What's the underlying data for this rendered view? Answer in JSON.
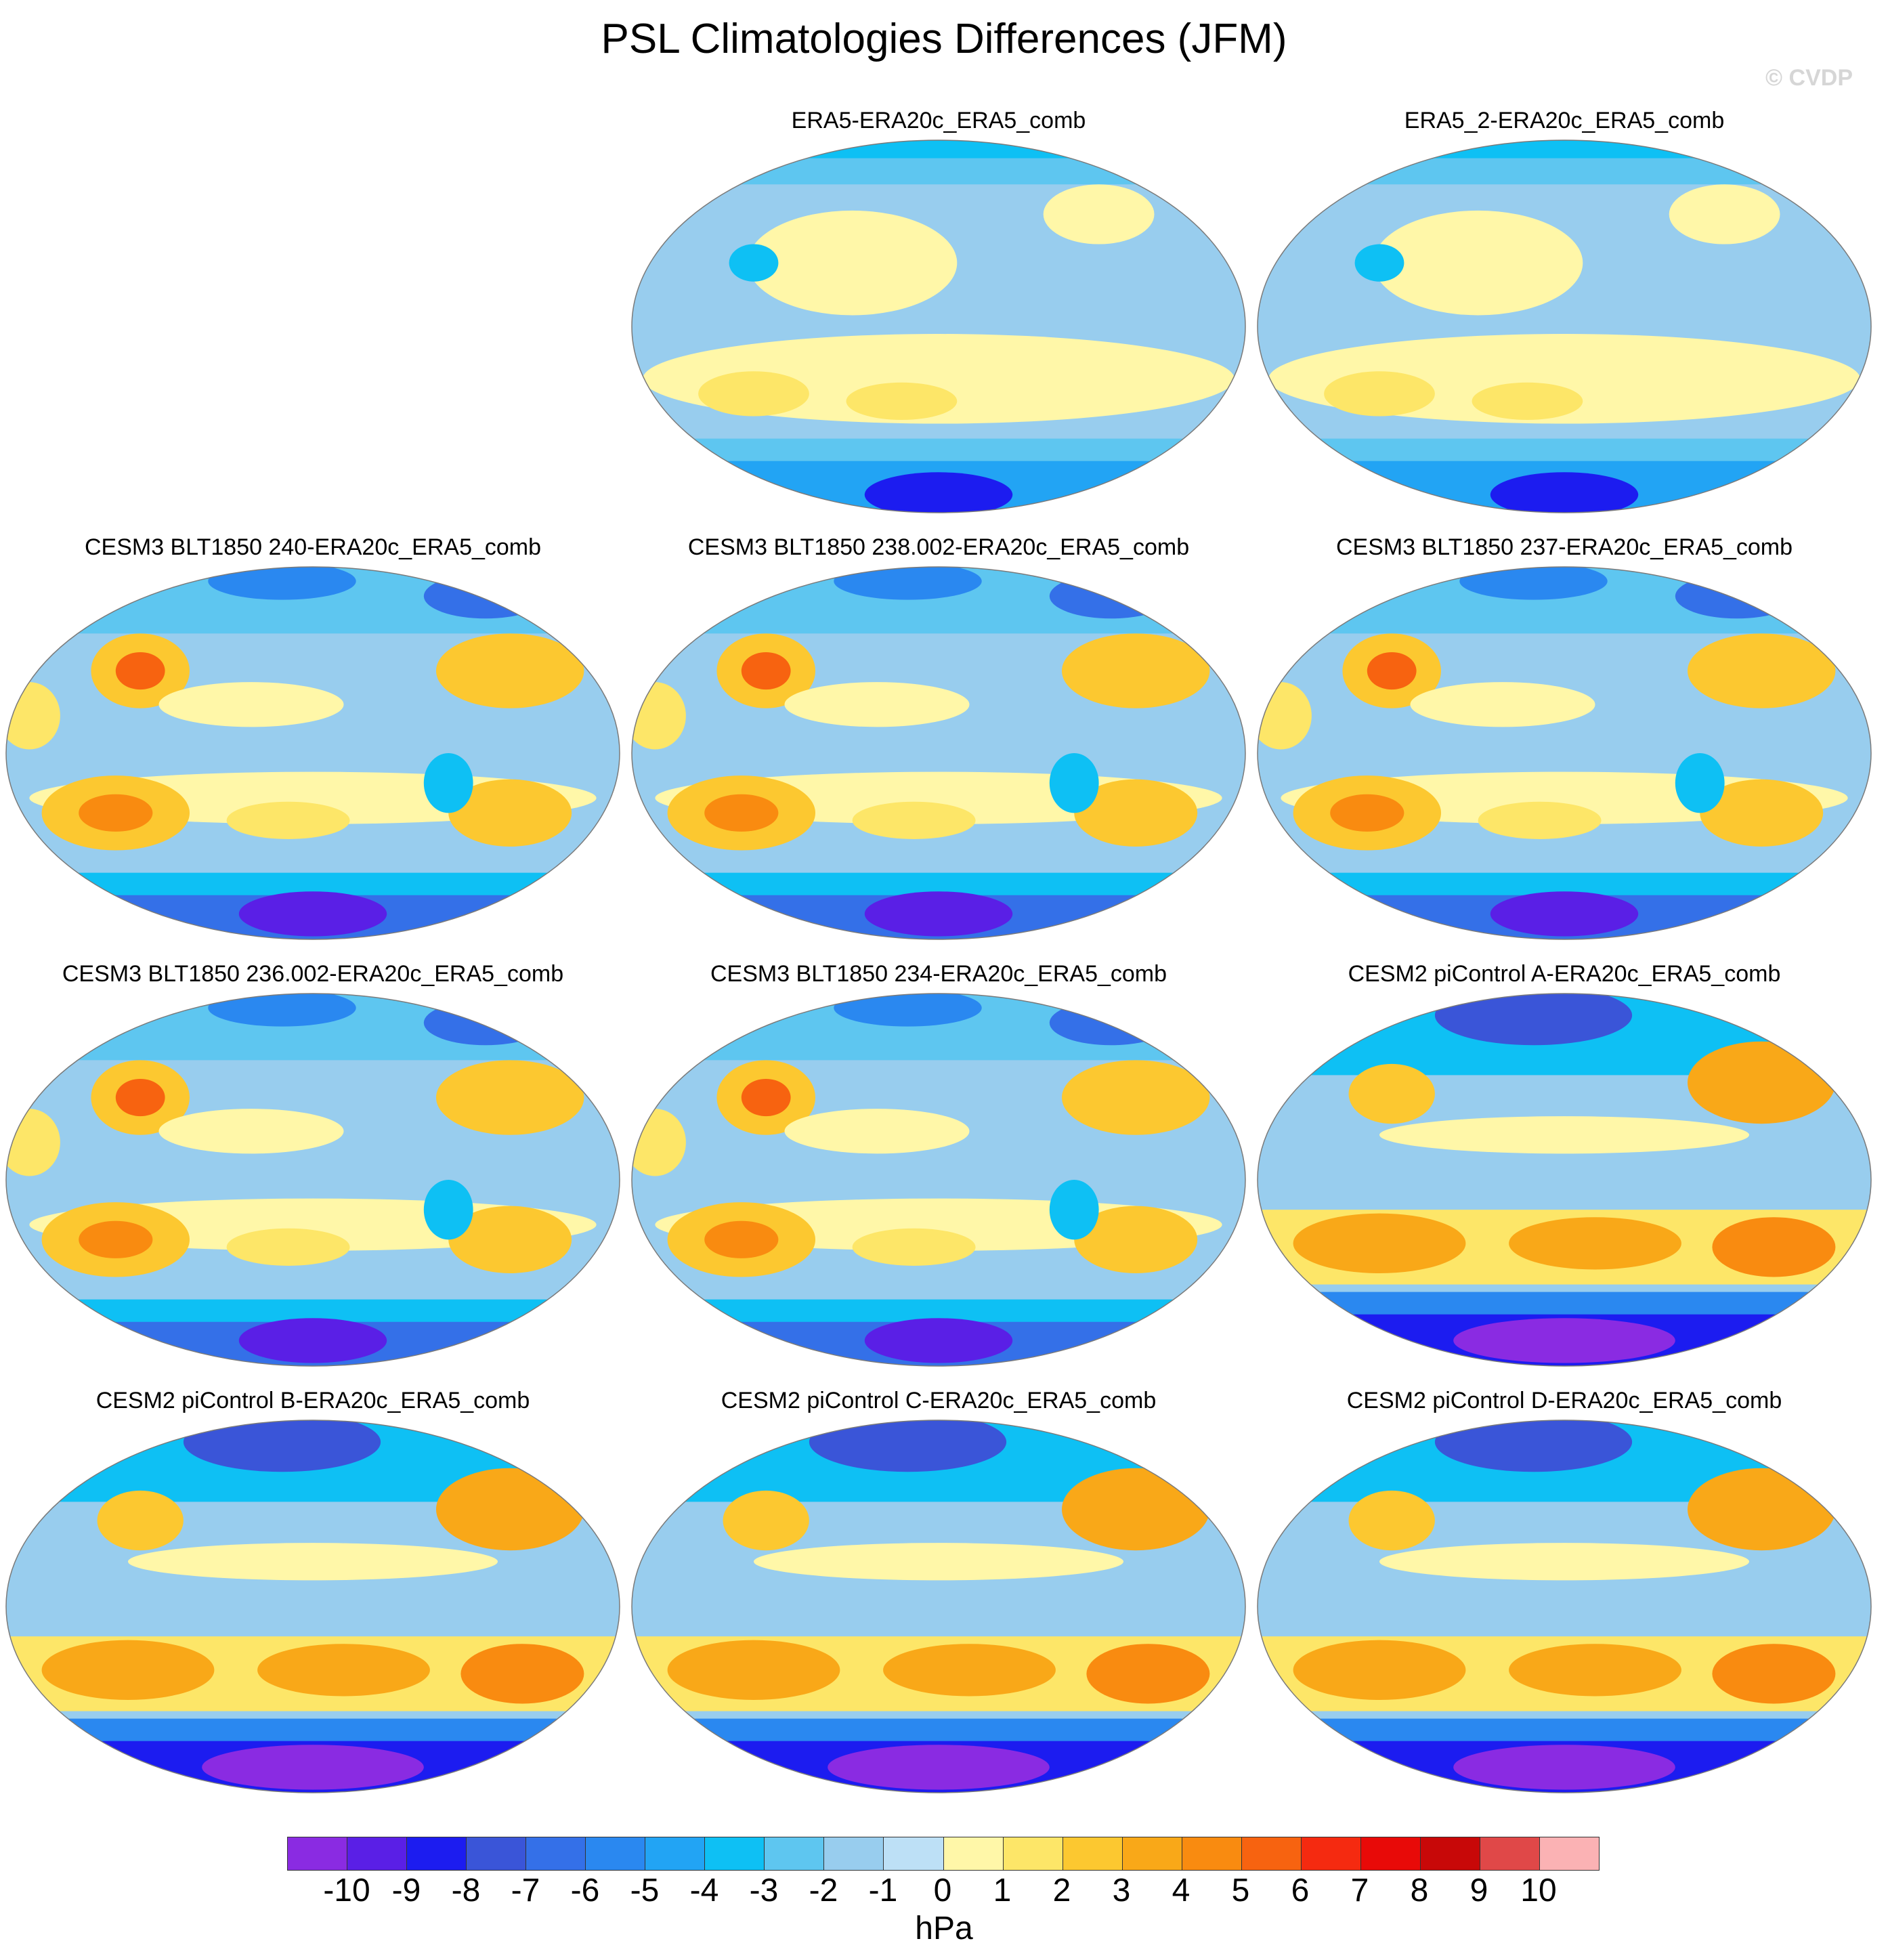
{
  "title": "PSL Climatologies Differences (JFM)",
  "copyright": "© CVDP",
  "panels": [
    {
      "title": "ERA5-ERA20c_ERA5_comb",
      "style": "reanalysis"
    },
    {
      "title": "ERA5_2-ERA20c_ERA5_comb",
      "style": "reanalysis"
    },
    {
      "title": "CESM3 BLT1850 240-ERA20c_ERA5_comb",
      "style": "cesm3"
    },
    {
      "title": "CESM3 BLT1850 238.002-ERA20c_ERA5_comb",
      "style": "cesm3"
    },
    {
      "title": "CESM3 BLT1850 237-ERA20c_ERA5_comb",
      "style": "cesm3"
    },
    {
      "title": "CESM3 BLT1850 236.002-ERA20c_ERA5_comb",
      "style": "cesm3"
    },
    {
      "title": "CESM3 BLT1850 234-ERA20c_ERA5_comb",
      "style": "cesm3"
    },
    {
      "title": "CESM2 piControl A-ERA20c_ERA5_comb",
      "style": "cesm2"
    },
    {
      "title": "CESM2 piControl B-ERA20c_ERA5_comb",
      "style": "cesm2"
    },
    {
      "title": "CESM2 piControl C-ERA20c_ERA5_comb",
      "style": "cesm2"
    },
    {
      "title": "CESM2 piControl D-ERA20c_ERA5_comb",
      "style": "cesm2"
    }
  ],
  "colorbar": {
    "labels": [
      "-10",
      "-9",
      "-8",
      "-7",
      "-6",
      "-5",
      "-4",
      "-3",
      "-2",
      "-1",
      "0",
      "1",
      "2",
      "3",
      "4",
      "5",
      "6",
      "7",
      "8",
      "9",
      "10"
    ],
    "colors": [
      "#8a2be2",
      "#5a1fe6",
      "#1c1cf0",
      "#3a55d8",
      "#3470e8",
      "#2a88f0",
      "#22a4f4",
      "#0ec0f4",
      "#5ec6f0",
      "#98cdee",
      "#bde0f6",
      "#fff7a8",
      "#fde668",
      "#fcc830",
      "#f9a818",
      "#f98b10",
      "#f76310",
      "#f52a10",
      "#e80a08",
      "#c80808",
      "#e04848",
      "#fbb2b4"
    ],
    "units": "hPa"
  }
}
